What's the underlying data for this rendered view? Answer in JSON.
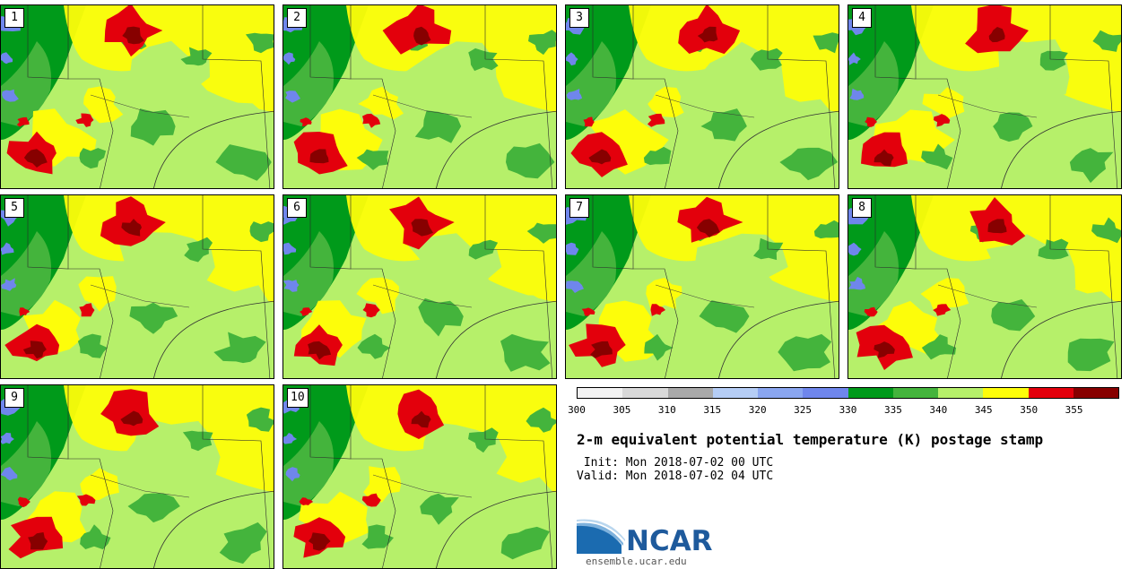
{
  "panels": [
    {
      "label": "1"
    },
    {
      "label": "2"
    },
    {
      "label": "3"
    },
    {
      "label": "4"
    },
    {
      "label": "5"
    },
    {
      "label": "6"
    },
    {
      "label": "7"
    },
    {
      "label": "8"
    },
    {
      "label": "9"
    },
    {
      "label": "10"
    }
  ],
  "colorbar": {
    "colors": [
      "#f2f2f2",
      "#d9d9d9",
      "#a9a9a9",
      "#b5cdf5",
      "#8aa6f0",
      "#6f86ec",
      "#009a1a",
      "#44b43c",
      "#b6f06a",
      "#fdfd0a",
      "#e3000c",
      "#870000"
    ],
    "ticks": [
      "300",
      "305",
      "310",
      "315",
      "320",
      "325",
      "330",
      "335",
      "340",
      "345",
      "350",
      "355"
    ]
  },
  "title": "2-m equivalent potential temperature (K) postage stamp",
  "init_line": " Init: Mon 2018-07-02 00 UTC",
  "valid_line": "Valid: Mon 2018-07-02 04 UTC",
  "logo_text": "NCAR",
  "url": "ensemble.ucar.edu"
}
